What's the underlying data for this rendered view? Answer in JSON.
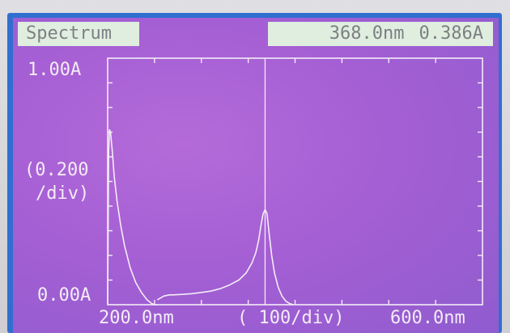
{
  "header": {
    "mode_label": "Spectrum",
    "cursor_wavelength": "368.0nm",
    "cursor_absorbance": "0.386A"
  },
  "axes": {
    "y_max_label": "1.00A",
    "y_min_label": "0.00A",
    "y_div_label_line1": "(0.200",
    "y_div_label_line2": "/div)",
    "x_min_label": "200.0nm",
    "x_div_label": "( 100/div)",
    "x_max_label": "600.0nm"
  },
  "colors": {
    "screen_bg": "#a55fd4",
    "trace": "#f3ecf6",
    "header_box": "#dfeede",
    "header_text": "#7d7f84",
    "bezel": "#2f6fd0"
  },
  "chart_data": {
    "type": "line",
    "xlim": [
      200,
      600
    ],
    "ylim": [
      0,
      1.0
    ],
    "cursor": {
      "x": 368,
      "y": 0.386
    },
    "series": [
      {
        "x": [
          200,
          201,
          202,
          203,
          205,
          207,
          210,
          214,
          218,
          224,
          230,
          236,
          242,
          247,
          250,
          253
        ],
        "y": [
          0.0,
          0.62,
          0.71,
          0.7,
          0.62,
          0.52,
          0.42,
          0.32,
          0.24,
          0.15,
          0.09,
          0.05,
          0.02,
          0.005,
          0.0,
          0.0
        ]
      },
      {
        "x": [
          253,
          260,
          266,
          270,
          280,
          290,
          300,
          310,
          320,
          330,
          340,
          348,
          354,
          358,
          361,
          364,
          366,
          368,
          370,
          372,
          375,
          378,
          382,
          386,
          390,
          394,
          398
        ],
        "y": [
          0.02,
          0.035,
          0.04,
          0.04,
          0.042,
          0.045,
          0.05,
          0.055,
          0.065,
          0.08,
          0.1,
          0.13,
          0.17,
          0.21,
          0.26,
          0.33,
          0.37,
          0.386,
          0.37,
          0.3,
          0.2,
          0.13,
          0.07,
          0.035,
          0.015,
          0.005,
          0.0
        ]
      }
    ]
  }
}
